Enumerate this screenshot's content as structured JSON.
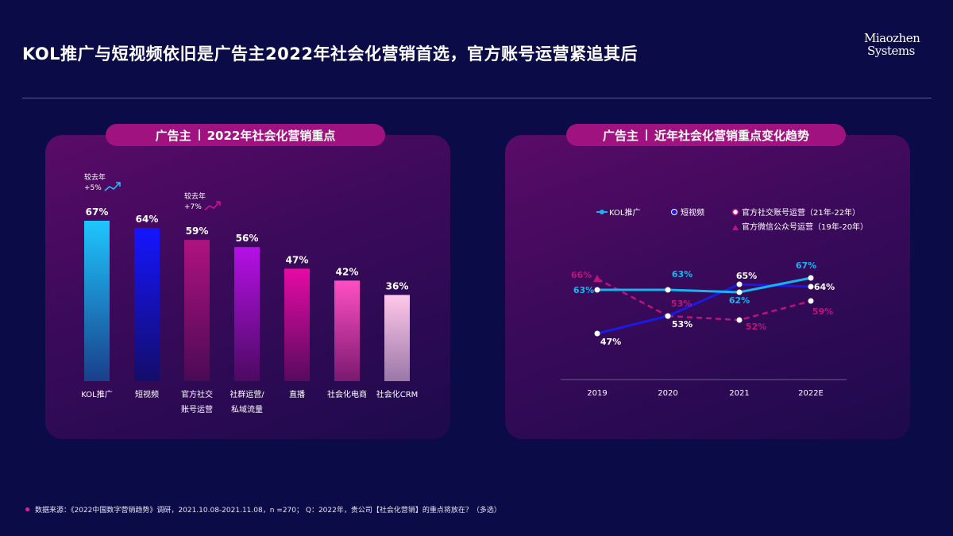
{
  "title": "KOL推广与短视频依旧是广告主2022年社会化营销首选，官方账号运营紧追其后",
  "logo": {
    "line1": "Miaozhen",
    "line2": "Systems"
  },
  "left_panel": {
    "pill_prefix": "广告主",
    "pill_text": "2022年社会化营销重点"
  },
  "right_panel": {
    "pill_prefix": "广告主",
    "pill_text": "近年社会化营销重点变化趋势"
  },
  "footnote": "数据来源：《2022中国数字营销趋势》调研，2021.10.08-2021.11.08，n =270；  Q：2022年，贵公司【社会化营销】的重点将放在？（多选）",
  "colors": {
    "background": "#0b0b47",
    "accent_pink": "#e0209a",
    "kol": "#18b4f0",
    "short_video": "#1a1ae6",
    "official_account": "#a0127f"
  },
  "chart_data": [
    {
      "type": "bar",
      "categories": [
        [
          "KOL推广"
        ],
        [
          "短视频"
        ],
        [
          "官方社交",
          "账号运营"
        ],
        [
          "社群运营/",
          "私域流量"
        ],
        [
          "直播"
        ],
        [
          "社会化电商"
        ],
        [
          "社会化CRM"
        ]
      ],
      "values": [
        67,
        64,
        59,
        56,
        47,
        42,
        36
      ],
      "value_labels": [
        "67%",
        "64%",
        "59%",
        "56%",
        "47%",
        "42%",
        "36%"
      ],
      "bar_colors": [
        [
          "#1ec6ff",
          "#1a3f8a"
        ],
        [
          "#1515ff",
          "#140d6a"
        ],
        [
          "#b0127f",
          "#4a0a55"
        ],
        [
          "#b510e6",
          "#4c0a62"
        ],
        [
          "#e60aa5",
          "#570a5e"
        ],
        [
          "#ff4fc2",
          "#7a1970"
        ],
        [
          "#ffc8ea",
          "#9a78a8"
        ]
      ],
      "ylim": [
        0,
        70
      ],
      "annotations": [
        {
          "bar": 0,
          "lines": [
            "较去年",
            "+5%"
          ],
          "trend": "up",
          "color": "#1ec6ff"
        },
        {
          "bar": 2,
          "lines": [
            "较去年",
            "+7%"
          ],
          "trend": "up",
          "color": "#d0148f"
        }
      ]
    },
    {
      "type": "line",
      "x": [
        "2019",
        "2020",
        "2021",
        "2022E"
      ],
      "ylim": [
        40,
        72
      ],
      "legend": [
        {
          "name": "KOL推广",
          "color": "#18b4f0",
          "marker": "line-dot"
        },
        {
          "name": "短视频",
          "color": "#1a1ae6",
          "marker": "dot"
        },
        {
          "name": "官方社交账号运营（21年-22年）",
          "color": "#c0127f",
          "marker": "hollow-dot"
        },
        {
          "name": "官方微信公众号运营（19年-20年）",
          "color": "#c0127f",
          "marker": "triangle"
        }
      ],
      "series": [
        {
          "name": "KOL推广",
          "color": "#18b4f0",
          "values": [
            63,
            63,
            62,
            67
          ],
          "labels": [
            "63%",
            "63%",
            "62%",
            "67%"
          ]
        },
        {
          "name": "短视频",
          "color": "#1a1ae6",
          "values": [
            47,
            53,
            65,
            64
          ],
          "labels": [
            "47%",
            "53%",
            "65%",
            "64%"
          ]
        },
        {
          "name": "官方微信公众号运营（19年-20年）",
          "color": "#c0127f",
          "values": [
            66,
            53,
            null,
            null
          ],
          "labels": [
            "66%",
            "53%",
            null,
            null
          ]
        },
        {
          "name": "官方社交账号运营（21年-22年）",
          "color": "#c0127f",
          "values": [
            null,
            53,
            52,
            59
          ],
          "labels": [
            null,
            null,
            "52%",
            "59%"
          ]
        }
      ]
    }
  ]
}
